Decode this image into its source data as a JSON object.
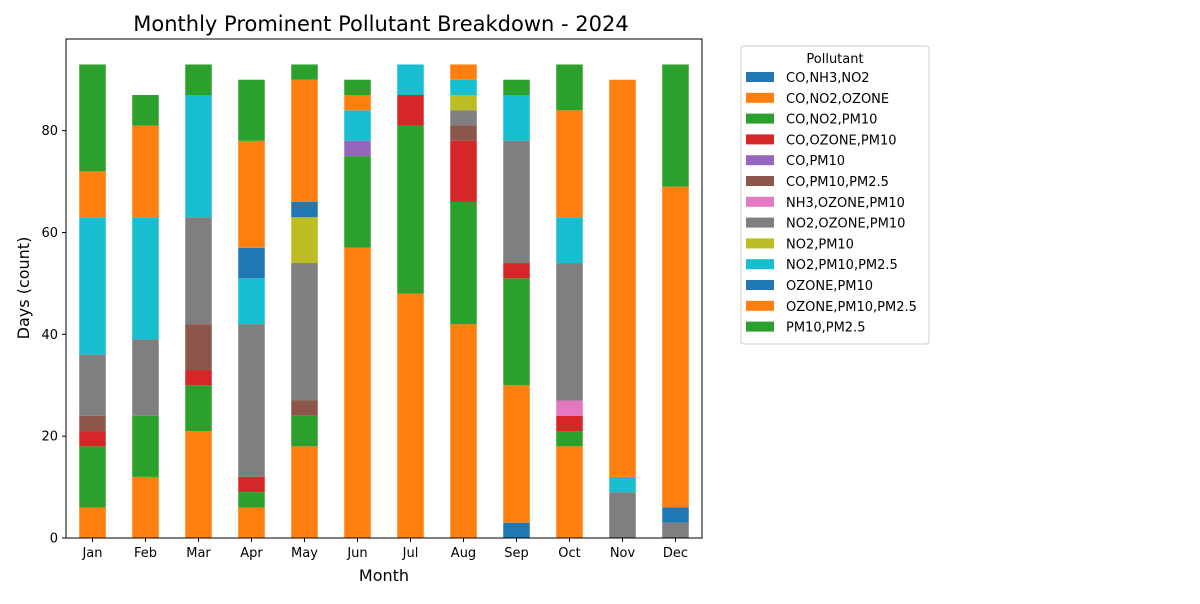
{
  "chart_data": {
    "type": "bar",
    "stacked": true,
    "title": "Monthly Prominent Pollutant Breakdown - 2024",
    "xlabel": "Month",
    "ylabel": "Days (count)",
    "ylim": [
      0,
      98
    ],
    "yticks": [
      0,
      20,
      40,
      60,
      80
    ],
    "legend_title": "Pollutant",
    "legend_position": "outside-right",
    "grid": false,
    "categories": [
      "Jan",
      "Feb",
      "Mar",
      "Apr",
      "May",
      "Jun",
      "Jul",
      "Aug",
      "Sep",
      "Oct",
      "Nov",
      "Dec"
    ],
    "series": [
      {
        "name": "CO,NH3,NO2",
        "color": "#1f77b4",
        "values": [
          0,
          0,
          0,
          0,
          0,
          0,
          0,
          0,
          3,
          0,
          0,
          0
        ]
      },
      {
        "name": "CO,NO2,OZONE",
        "color": "#ff7f0e",
        "values": [
          6,
          12,
          21,
          6,
          18,
          57,
          48,
          42,
          27,
          18,
          0,
          0
        ]
      },
      {
        "name": "CO,NO2,PM10",
        "color": "#2ca02c",
        "values": [
          12,
          12,
          9,
          3,
          6,
          0,
          0,
          0,
          21,
          3,
          0,
          0
        ]
      },
      {
        "name": "CO,OZONE,PM10",
        "color": "#d62728",
        "values": [
          3,
          0,
          3,
          3,
          0,
          0,
          0,
          0,
          3,
          3,
          0,
          0
        ]
      },
      {
        "name": "CO,PM10",
        "color": "#9467bd",
        "values": [
          0,
          0,
          0,
          0,
          0,
          0,
          0,
          0,
          0,
          0,
          0,
          0
        ]
      },
      {
        "name": "CO,PM10,PM2.5",
        "color": "#8c564b",
        "values": [
          3,
          0,
          9,
          0,
          3,
          0,
          0,
          0,
          0,
          0,
          0,
          0
        ]
      },
      {
        "name": "NH3,OZONE,PM10",
        "color": "#e377c2",
        "values": [
          0,
          0,
          0,
          0,
          0,
          0,
          0,
          0,
          0,
          3,
          0,
          0
        ]
      },
      {
        "name": "NO2,OZONE,PM10",
        "color": "#7f7f7f",
        "values": [
          12,
          15,
          21,
          30,
          27,
          0,
          0,
          0,
          24,
          27,
          9,
          3
        ]
      },
      {
        "name": "NO2,PM10",
        "color": "#bcbd22",
        "values": [
          0,
          0,
          0,
          0,
          9,
          0,
          0,
          0,
          0,
          0,
          0,
          0
        ]
      },
      {
        "name": "NO2,PM10,PM2.5",
        "color": "#17becf",
        "values": [
          27,
          24,
          24,
          9,
          0,
          0,
          0,
          0,
          0,
          9,
          3,
          0
        ]
      },
      {
        "name": "OZONE,PM10",
        "color": "#1f77b4",
        "values": [
          0,
          0,
          0,
          6,
          3,
          0,
          0,
          0,
          0,
          0,
          0,
          3
        ]
      },
      {
        "name": "OZONE,PM10,PM2.5",
        "color": "#ff7f0e",
        "values": [
          9,
          18,
          0,
          21,
          24,
          0,
          0,
          0,
          0,
          21,
          78,
          63
        ]
      },
      {
        "name": "PM10,PM2.5",
        "color": "#2ca02c",
        "values": [
          21,
          6,
          6,
          12,
          3,
          0,
          0,
          0,
          0,
          9,
          0,
          24
        ]
      }
    ],
    "extra_segments": [
      {
        "category": "Jun",
        "items": [
          {
            "name": "CO,NO2,PM10",
            "value": 18
          },
          {
            "name": "CO,PM10",
            "value": 3
          },
          {
            "name": "NO2,PM10,PM2.5",
            "value": 6
          },
          {
            "name": "OZONE,PM10,PM2.5",
            "value": 3
          },
          {
            "name": "PM10,PM2.5",
            "value": 3
          }
        ]
      },
      {
        "category": "Jul",
        "items": [
          {
            "name": "CO,NO2,PM10",
            "value": 33
          },
          {
            "name": "CO,OZONE,PM10",
            "value": 6
          },
          {
            "name": "NO2,PM10,PM2.5",
            "value": 6
          }
        ]
      },
      {
        "category": "Aug",
        "items": [
          {
            "name": "CO,NO2,PM10",
            "value": 24
          },
          {
            "name": "CO,OZONE,PM10",
            "value": 12
          },
          {
            "name": "CO,PM10,PM2.5",
            "value": 3
          },
          {
            "name": "NO2,OZONE,PM10",
            "value": 3
          },
          {
            "name": "NO2,PM10",
            "value": 3
          },
          {
            "name": "NO2,PM10,PM2.5",
            "value": 3
          },
          {
            "name": "OZONE,PM10,PM2.5",
            "value": 3
          }
        ]
      },
      {
        "category": "Sep",
        "items": [
          {
            "name": "NO2,PM10,PM2.5",
            "value": 9
          },
          {
            "name": "PM10,PM2.5",
            "value": 3
          }
        ]
      }
    ]
  }
}
